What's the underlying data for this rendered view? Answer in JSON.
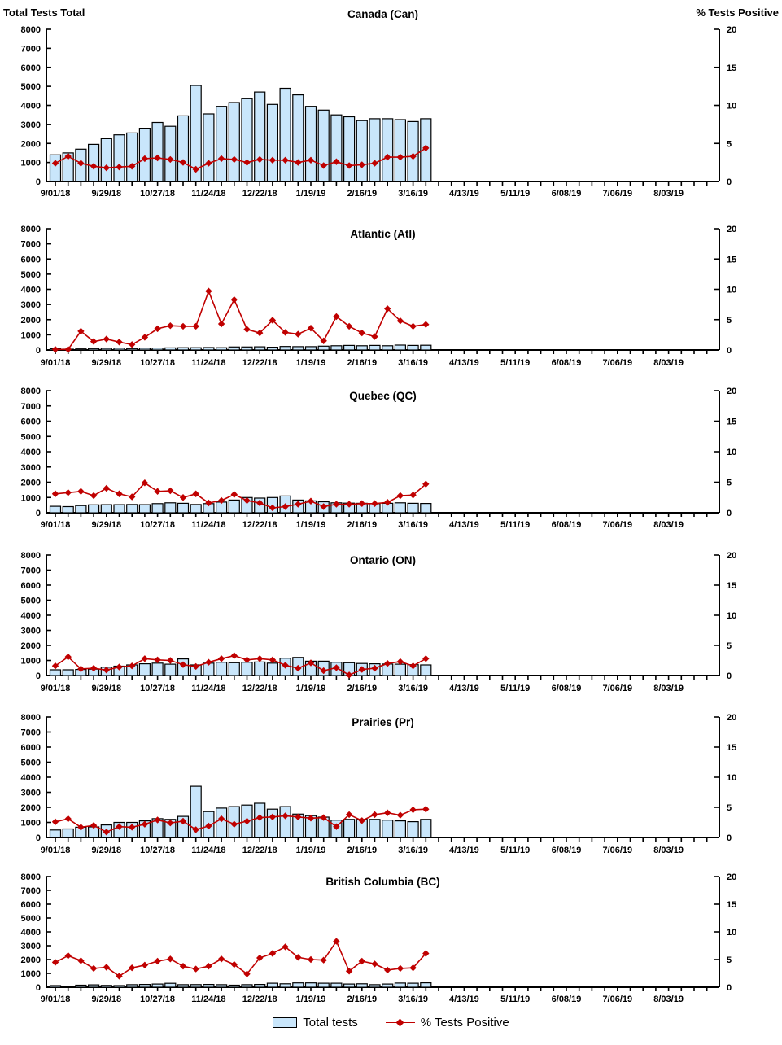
{
  "header": {
    "left_axis_title": "Total Tests Total",
    "right_axis_title": "% Tests Positive"
  },
  "legend": {
    "items": [
      {
        "label": "Total tests",
        "swatch": "bar"
      },
      {
        "label": "% Tests Positive",
        "swatch": "line-diamond"
      }
    ]
  },
  "colors": {
    "bar_fill": "#C9E6FB",
    "bar_stroke": "#000000",
    "line": "#C00000",
    "axis": "#000000",
    "text": "#000000"
  },
  "axes": {
    "left_ticks": [
      0,
      1000,
      2000,
      3000,
      4000,
      5000,
      6000,
      7000,
      8000
    ],
    "right_ticks": [
      0,
      5,
      10,
      15,
      20
    ],
    "x_tick_labels": [
      "9/01/18",
      "9/29/18",
      "10/27/18",
      "11/24/18",
      "12/22/18",
      "1/19/19",
      "2/16/19",
      "3/16/19",
      "4/13/19",
      "5/11/19",
      "6/08/19",
      "7/06/19",
      "8/03/19"
    ],
    "label_every": 4,
    "total_weekly_ticks": 52
  },
  "chart_data": [
    {
      "type": "bar+line",
      "code": "can",
      "title": "Canada (Can)",
      "left_ylabel": "Total Tests",
      "right_ylabel": "% Tests Positive",
      "left_ylim": [
        0,
        8000
      ],
      "right_ylim": [
        0,
        20
      ],
      "categories": [
        "9/01/18",
        "9/08/18",
        "9/15/18",
        "9/22/18",
        "9/29/18",
        "10/06/18",
        "10/13/18",
        "10/20/18",
        "10/27/18",
        "11/03/18",
        "11/10/18",
        "11/17/18",
        "11/24/18",
        "12/01/18",
        "12/08/18",
        "12/15/18",
        "12/22/18",
        "12/29/18",
        "1/05/19",
        "1/12/19",
        "1/19/19",
        "1/26/19",
        "2/02/19",
        "2/09/19",
        "2/16/19",
        "2/23/19",
        "3/02/19",
        "3/09/19",
        "3/16/19",
        "3/23/19"
      ],
      "series": [
        {
          "name": "Total tests",
          "axis": "left",
          "values": [
            1400,
            1500,
            1700,
            1950,
            2250,
            2450,
            2550,
            2800,
            3100,
            2900,
            3450,
            5050,
            3550,
            3950,
            4150,
            4350,
            4700,
            4050,
            4900,
            4550,
            3950,
            3750,
            3500,
            3400,
            3200,
            3300,
            3300,
            3250,
            3150,
            3300
          ]
        },
        {
          "name": "% Tests Positive",
          "axis": "right",
          "values": [
            2.4,
            3.3,
            2.4,
            2.0,
            1.8,
            1.9,
            2.0,
            3.0,
            3.1,
            2.9,
            2.5,
            1.6,
            2.4,
            3.0,
            2.9,
            2.5,
            2.9,
            2.8,
            2.8,
            2.5,
            2.8,
            2.1,
            2.6,
            2.1,
            2.2,
            2.4,
            3.2,
            3.2,
            3.3,
            4.4
          ]
        }
      ]
    },
    {
      "type": "bar+line",
      "code": "atl",
      "title": "Atlantic (Atl)",
      "left_ylabel": "Total Tests",
      "right_ylabel": "% Tests Positive",
      "left_ylim": [
        0,
        8000
      ],
      "right_ylim": [
        0,
        20
      ],
      "categories": [
        "9/01/18",
        "9/08/18",
        "9/15/18",
        "9/22/18",
        "9/29/18",
        "10/06/18",
        "10/13/18",
        "10/20/18",
        "10/27/18",
        "11/03/18",
        "11/10/18",
        "11/17/18",
        "11/24/18",
        "12/01/18",
        "12/08/18",
        "12/15/18",
        "12/22/18",
        "12/29/18",
        "1/05/19",
        "1/12/19",
        "1/19/19",
        "1/26/19",
        "2/02/19",
        "2/09/19",
        "2/16/19",
        "2/23/19",
        "3/02/19",
        "3/09/19",
        "3/16/19",
        "3/23/19"
      ],
      "series": [
        {
          "name": "Total tests",
          "axis": "left",
          "values": [
            80,
            50,
            70,
            90,
            110,
            120,
            90,
            120,
            130,
            140,
            150,
            150,
            160,
            150,
            200,
            200,
            210,
            180,
            230,
            220,
            220,
            250,
            280,
            300,
            280,
            300,
            280,
            320,
            300,
            310
          ]
        },
        {
          "name": "% Tests Positive",
          "axis": "right",
          "values": [
            0.1,
            0.1,
            3.1,
            1.4,
            1.8,
            1.3,
            0.9,
            2.1,
            3.5,
            4.0,
            3.9,
            3.9,
            9.7,
            4.3,
            8.3,
            3.4,
            2.8,
            4.9,
            2.9,
            2.6,
            3.6,
            1.5,
            5.5,
            3.9,
            2.8,
            2.2,
            6.8,
            4.8,
            3.9,
            4.2
          ]
        }
      ]
    },
    {
      "type": "bar+line",
      "code": "qc",
      "title": "Quebec (QC)",
      "left_ylabel": "Total Tests",
      "right_ylabel": "% Tests Positive",
      "left_ylim": [
        0,
        8000
      ],
      "right_ylim": [
        0,
        20
      ],
      "categories": [
        "9/01/18",
        "9/08/18",
        "9/15/18",
        "9/22/18",
        "9/29/18",
        "10/06/18",
        "10/13/18",
        "10/20/18",
        "10/27/18",
        "11/03/18",
        "11/10/18",
        "11/17/18",
        "11/24/18",
        "12/01/18",
        "12/08/18",
        "12/15/18",
        "12/22/18",
        "12/29/18",
        "1/05/19",
        "1/12/19",
        "1/19/19",
        "1/26/19",
        "2/02/19",
        "2/09/19",
        "2/16/19",
        "2/23/19",
        "3/02/19",
        "3/09/19",
        "3/16/19",
        "3/23/19"
      ],
      "series": [
        {
          "name": "Total tests",
          "axis": "left",
          "values": [
            420,
            400,
            470,
            520,
            530,
            530,
            540,
            530,
            600,
            650,
            620,
            540,
            600,
            700,
            830,
            1000,
            960,
            1000,
            1100,
            830,
            780,
            720,
            650,
            630,
            620,
            600,
            620,
            650,
            620,
            610
          ]
        },
        {
          "name": "% Tests Positive",
          "axis": "right",
          "values": [
            3.1,
            3.3,
            3.5,
            2.8,
            4.0,
            3.1,
            2.6,
            4.9,
            3.5,
            3.6,
            2.5,
            3.1,
            1.6,
            2.0,
            3.0,
            2.0,
            1.6,
            0.8,
            1.0,
            1.4,
            1.9,
            1.0,
            1.4,
            1.4,
            1.5,
            1.5,
            1.7,
            2.8,
            2.9,
            4.7
          ]
        }
      ]
    },
    {
      "type": "bar+line",
      "code": "on",
      "title": "Ontario (ON)",
      "left_ylabel": "Total Tests",
      "right_ylabel": "% Tests Positive",
      "left_ylim": [
        0,
        8000
      ],
      "right_ylim": [
        0,
        20
      ],
      "categories": [
        "9/01/18",
        "9/08/18",
        "9/15/18",
        "9/22/18",
        "9/29/18",
        "10/06/18",
        "10/13/18",
        "10/20/18",
        "10/27/18",
        "11/03/18",
        "11/10/18",
        "11/17/18",
        "11/24/18",
        "12/01/18",
        "12/08/18",
        "12/15/18",
        "12/22/18",
        "12/29/18",
        "1/05/19",
        "1/12/19",
        "1/19/19",
        "1/26/19",
        "2/02/19",
        "2/09/19",
        "2/16/19",
        "2/23/19",
        "3/02/19",
        "3/09/19",
        "3/16/19",
        "3/23/19"
      ],
      "series": [
        {
          "name": "Total tests",
          "axis": "left",
          "values": [
            380,
            380,
            400,
            420,
            550,
            620,
            700,
            780,
            820,
            750,
            1100,
            700,
            820,
            880,
            850,
            880,
            900,
            820,
            1150,
            1200,
            950,
            950,
            880,
            850,
            800,
            780,
            760,
            750,
            720,
            700
          ]
        },
        {
          "name": "% Tests Positive",
          "axis": "right",
          "values": [
            1.6,
            3.1,
            1.1,
            1.2,
            0.9,
            1.4,
            1.6,
            2.8,
            2.6,
            2.5,
            1.8,
            1.5,
            2.2,
            2.8,
            3.3,
            2.6,
            2.8,
            2.6,
            1.7,
            1.2,
            2.1,
            0.8,
            1.3,
            0.1,
            1.0,
            1.2,
            2.0,
            2.3,
            1.6,
            2.8
          ]
        }
      ]
    },
    {
      "type": "bar+line",
      "code": "pr",
      "title": "Prairies (Pr)",
      "left_ylabel": "Total Tests",
      "right_ylabel": "% Tests Positive",
      "left_ylim": [
        0,
        8000
      ],
      "right_ylim": [
        0,
        20
      ],
      "categories": [
        "9/01/18",
        "9/08/18",
        "9/15/18",
        "9/22/18",
        "9/29/18",
        "10/06/18",
        "10/13/18",
        "10/20/18",
        "10/27/18",
        "11/03/18",
        "11/10/18",
        "11/17/18",
        "11/24/18",
        "12/01/18",
        "12/08/18",
        "12/15/18",
        "12/22/18",
        "12/29/18",
        "1/05/19",
        "1/12/19",
        "1/19/19",
        "1/26/19",
        "2/02/19",
        "2/09/19",
        "2/16/19",
        "2/23/19",
        "3/02/19",
        "3/09/19",
        "3/16/19",
        "3/23/19"
      ],
      "series": [
        {
          "name": "Total tests",
          "axis": "left",
          "values": [
            500,
            570,
            680,
            700,
            830,
            1000,
            1000,
            1100,
            1250,
            1200,
            1400,
            3400,
            1720,
            1950,
            2050,
            2150,
            2270,
            1880,
            2050,
            1550,
            1450,
            1350,
            1150,
            1200,
            1200,
            1200,
            1150,
            1100,
            1050,
            1200
          ]
        },
        {
          "name": "% Tests Positive",
          "axis": "right",
          "values": [
            2.6,
            3.1,
            1.7,
            2.0,
            0.9,
            1.8,
            1.7,
            2.2,
            2.9,
            2.4,
            2.7,
            1.3,
            1.9,
            3.1,
            2.2,
            2.7,
            3.3,
            3.4,
            3.6,
            3.4,
            3.2,
            3.3,
            1.8,
            3.8,
            2.8,
            3.8,
            4.1,
            3.7,
            4.6,
            4.7
          ]
        }
      ]
    },
    {
      "type": "bar+line",
      "code": "bc",
      "title": "British Columbia (BC)",
      "left_ylabel": "Total Tests",
      "right_ylabel": "% Tests Positive",
      "left_ylim": [
        0,
        8000
      ],
      "right_ylim": [
        0,
        20
      ],
      "categories": [
        "9/01/18",
        "9/08/18",
        "9/15/18",
        "9/22/18",
        "9/29/18",
        "10/06/18",
        "10/13/18",
        "10/20/18",
        "10/27/18",
        "11/03/18",
        "11/10/18",
        "11/17/18",
        "11/24/18",
        "12/01/18",
        "12/08/18",
        "12/15/18",
        "12/22/18",
        "12/29/18",
        "1/05/19",
        "1/12/19",
        "1/19/19",
        "1/26/19",
        "2/02/19",
        "2/09/19",
        "2/16/19",
        "2/23/19",
        "3/02/19",
        "3/09/19",
        "3/16/19",
        "3/23/19"
      ],
      "series": [
        {
          "name": "Total tests",
          "axis": "left",
          "values": [
            120,
            60,
            150,
            170,
            130,
            120,
            180,
            200,
            230,
            280,
            180,
            190,
            200,
            180,
            150,
            180,
            200,
            290,
            250,
            310,
            310,
            290,
            290,
            230,
            250,
            180,
            230,
            300,
            290,
            320
          ]
        },
        {
          "name": "% Tests Positive",
          "axis": "right",
          "values": [
            4.5,
            5.7,
            4.8,
            3.4,
            3.6,
            2.0,
            3.5,
            4.0,
            4.7,
            5.1,
            3.8,
            3.3,
            3.8,
            5.1,
            4.1,
            2.4,
            5.3,
            6.1,
            7.3,
            5.4,
            5.0,
            4.9,
            8.3,
            2.9,
            4.7,
            4.2,
            3.1,
            3.4,
            3.5,
            6.1
          ]
        }
      ]
    }
  ]
}
